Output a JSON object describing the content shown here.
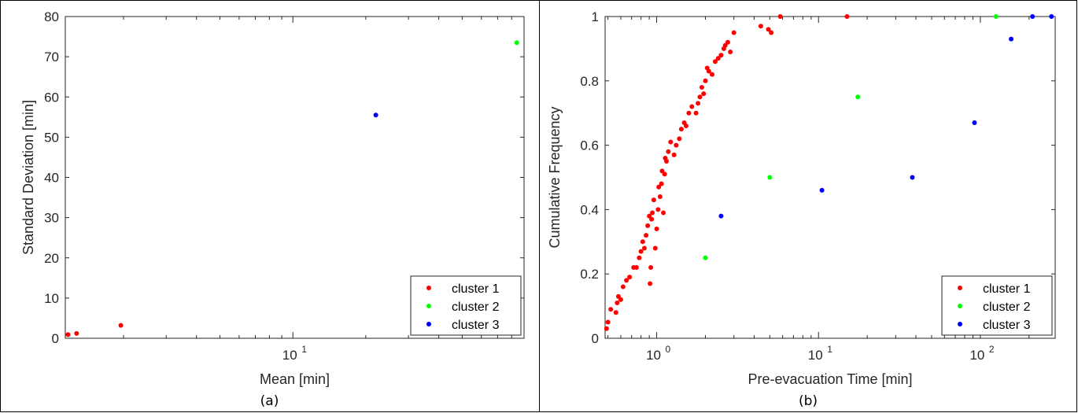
{
  "chart_data": [
    {
      "type": "scatter",
      "caption": "(a)",
      "xlabel": "Mean [min]",
      "ylabel": "Standard Deviation [min]",
      "xscale": "log",
      "xlim": [
        1.15,
        90
      ],
      "ylim": [
        0,
        80
      ],
      "yticks": [
        0,
        10,
        20,
        30,
        40,
        50,
        60,
        70,
        80
      ],
      "xticks": [
        {
          "value": 10,
          "base": "10",
          "exp": "1"
        }
      ],
      "grid": false,
      "legend_position": "bottom-right",
      "series": [
        {
          "name": "cluster 1",
          "color": "#ff0000",
          "points": [
            [
              1.18,
              0.9
            ],
            [
              1.28,
              1.2
            ],
            [
              1.95,
              3.2
            ]
          ]
        },
        {
          "name": "cluster 2",
          "color": "#00ff00",
          "points": [
            [
              84,
              73.5
            ]
          ]
        },
        {
          "name": "cluster 3",
          "color": "#0000ff",
          "points": [
            [
              22,
              55.5
            ]
          ]
        }
      ]
    },
    {
      "type": "scatter",
      "caption": "(b)",
      "xlabel": "Pre-evacuation Time [min]",
      "ylabel": "Cumulative Frequency",
      "xscale": "log",
      "xlim": [
        0.48,
        290
      ],
      "ylim": [
        0,
        1
      ],
      "yticks": [
        0,
        0.2,
        0.4,
        0.6,
        0.8,
        1
      ],
      "xticks": [
        {
          "value": 1,
          "base": "10",
          "exp": "0"
        },
        {
          "value": 10,
          "base": "10",
          "exp": "1"
        },
        {
          "value": 100,
          "base": "10",
          "exp": "2"
        }
      ],
      "grid": false,
      "legend_position": "bottom-right",
      "series": [
        {
          "name": "cluster 1",
          "color": "#ff0000",
          "points": [
            [
              0.49,
              0.03
            ],
            [
              0.5,
              0.05
            ],
            [
              0.52,
              0.09
            ],
            [
              0.56,
              0.08
            ],
            [
              0.57,
              0.11
            ],
            [
              0.58,
              0.13
            ],
            [
              0.6,
              0.12
            ],
            [
              0.62,
              0.16
            ],
            [
              0.65,
              0.18
            ],
            [
              0.68,
              0.19
            ],
            [
              0.72,
              0.22
            ],
            [
              0.75,
              0.22
            ],
            [
              0.78,
              0.25
            ],
            [
              0.8,
              0.27
            ],
            [
              0.82,
              0.3
            ],
            [
              0.84,
              0.28
            ],
            [
              0.86,
              0.32
            ],
            [
              0.88,
              0.35
            ],
            [
              0.9,
              0.38
            ],
            [
              0.91,
              0.17
            ],
            [
              0.92,
              0.22
            ],
            [
              0.93,
              0.37
            ],
            [
              0.94,
              0.39
            ],
            [
              0.96,
              0.43
            ],
            [
              0.98,
              0.28
            ],
            [
              1.0,
              0.34
            ],
            [
              1.02,
              0.4
            ],
            [
              1.03,
              0.47
            ],
            [
              1.05,
              0.44
            ],
            [
              1.07,
              0.48
            ],
            [
              1.08,
              0.52
            ],
            [
              1.1,
              0.39
            ],
            [
              1.12,
              0.51
            ],
            [
              1.13,
              0.56
            ],
            [
              1.15,
              0.55
            ],
            [
              1.18,
              0.58
            ],
            [
              1.22,
              0.61
            ],
            [
              1.28,
              0.57
            ],
            [
              1.32,
              0.6
            ],
            [
              1.38,
              0.62
            ],
            [
              1.42,
              0.65
            ],
            [
              1.48,
              0.67
            ],
            [
              1.52,
              0.66
            ],
            [
              1.58,
              0.7
            ],
            [
              1.65,
              0.72
            ],
            [
              1.75,
              0.7
            ],
            [
              1.8,
              0.73
            ],
            [
              1.85,
              0.75
            ],
            [
              1.9,
              0.78
            ],
            [
              1.95,
              0.76
            ],
            [
              2.0,
              0.8
            ],
            [
              2.05,
              0.84
            ],
            [
              2.1,
              0.83
            ],
            [
              2.2,
              0.82
            ],
            [
              2.3,
              0.86
            ],
            [
              2.4,
              0.87
            ],
            [
              2.5,
              0.88
            ],
            [
              2.6,
              0.9
            ],
            [
              2.65,
              0.91
            ],
            [
              2.75,
              0.92
            ],
            [
              2.85,
              0.89
            ],
            [
              3.0,
              0.95
            ],
            [
              4.4,
              0.97
            ],
            [
              4.9,
              0.96
            ],
            [
              5.1,
              0.95
            ],
            [
              5.8,
              1.0
            ],
            [
              15,
              1.0
            ]
          ]
        },
        {
          "name": "cluster 2",
          "color": "#00ff00",
          "points": [
            [
              2.0,
              0.25
            ],
            [
              5.0,
              0.5
            ],
            [
              17.5,
              0.75
            ],
            [
              125,
              1.0
            ]
          ]
        },
        {
          "name": "cluster 3",
          "color": "#0000ff",
          "points": [
            [
              2.5,
              0.38
            ],
            [
              10.5,
              0.46
            ],
            [
              38,
              0.5
            ],
            [
              92,
              0.67
            ],
            [
              155,
              0.93
            ],
            [
              210,
              1.0
            ],
            [
              275,
              1.0
            ]
          ]
        }
      ]
    }
  ]
}
